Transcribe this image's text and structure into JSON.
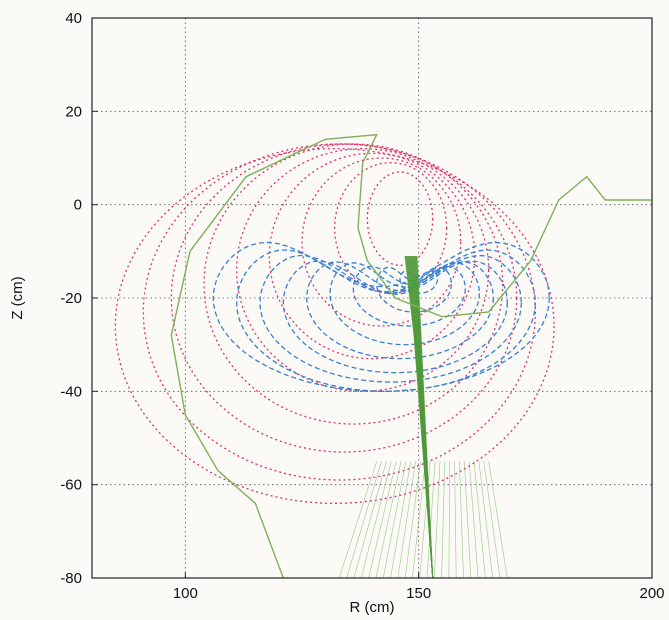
{
  "chart_data": {
    "type": "line",
    "xlabel": "R (cm)",
    "ylabel": "Z (cm)",
    "xlim": [
      80,
      200
    ],
    "ylim": [
      -80,
      40
    ],
    "xticks": [
      100,
      150,
      200
    ],
    "yticks": [
      -80,
      -60,
      -40,
      -20,
      0,
      20,
      40
    ],
    "grid": true,
    "grid_style": "dotted",
    "colors": {
      "flux_surfaces": "#e0306a",
      "contours": "#3a7fd0",
      "beam": "#4f9a3a",
      "wall": "#7fb05a",
      "grid": "#555555"
    },
    "series": [
      {
        "role": "flux-surfaces",
        "style": "dotted",
        "curves": [
          {
            "cx": 146,
            "cy": -3,
            "rx": 7,
            "ry": 10
          },
          {
            "cx": 144,
            "cy": -5,
            "rx": 12,
            "ry": 14
          },
          {
            "cx": 142,
            "cy": -8,
            "rx": 17,
            "ry": 18
          },
          {
            "cx": 140,
            "cy": -11,
            "rx": 22,
            "ry": 22
          },
          {
            "cx": 138,
            "cy": -14,
            "rx": 27,
            "ry": 26
          },
          {
            "cx": 136,
            "cy": -17,
            "rx": 32,
            "ry": 30
          },
          {
            "cx": 134,
            "cy": -20,
            "rx": 37,
            "ry": 33
          },
          {
            "cx": 133,
            "cy": -23,
            "rx": 42,
            "ry": 36
          },
          {
            "cx": 132,
            "cy": -26,
            "rx": 47,
            "ry": 38
          }
        ]
      },
      {
        "role": "kidney-contours",
        "style": "dashed",
        "curves": [
          {
            "cx": 150,
            "cy": -16,
            "rx": 4,
            "ry": 3
          },
          {
            "cx": 149,
            "cy": -17,
            "rx": 8,
            "ry": 6
          },
          {
            "cx": 148,
            "cy": -18,
            "rx": 12,
            "ry": 8
          },
          {
            "cx": 147,
            "cy": -19,
            "rx": 16,
            "ry": 11
          },
          {
            "cx": 146,
            "cy": -20,
            "rx": 20,
            "ry": 13
          },
          {
            "cx": 145,
            "cy": -21,
            "rx": 24,
            "ry": 15
          },
          {
            "cx": 144,
            "cy": -21,
            "rx": 28,
            "ry": 17
          },
          {
            "cx": 143,
            "cy": -21,
            "rx": 32,
            "ry": 19
          },
          {
            "cx": 142,
            "cy": -20,
            "rx": 36,
            "ry": 20
          }
        ]
      },
      {
        "role": "beam-rays",
        "style": "solid",
        "origin": [
          153,
          -80
        ],
        "count": 24,
        "spread_left": 9,
        "spread_right": 13,
        "focus_z": -28
      },
      {
        "role": "wall",
        "style": "solid",
        "points": [
          [
            200,
            1
          ],
          [
            198,
            1
          ],
          [
            190,
            1
          ],
          [
            186,
            6
          ],
          [
            180,
            1
          ],
          [
            174,
            -12
          ],
          [
            165,
            -23
          ],
          [
            155,
            -24
          ],
          [
            145,
            -20
          ],
          [
            139,
            -12
          ],
          [
            137,
            -5
          ],
          [
            138,
            9
          ],
          [
            141,
            15
          ],
          [
            130,
            14
          ],
          [
            113,
            6
          ],
          [
            101,
            -10
          ],
          [
            97,
            -28
          ],
          [
            100,
            -45
          ],
          [
            107,
            -57
          ],
          [
            115,
            -64
          ],
          [
            121,
            -80
          ]
        ]
      }
    ]
  }
}
